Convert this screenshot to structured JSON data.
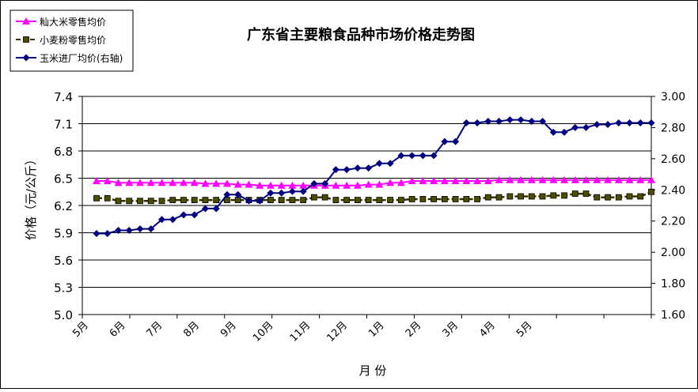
{
  "chart_data": {
    "type": "line",
    "title": "广东省主要粮食品种市场价格走势图",
    "xlabel": "月 份",
    "ylabel": "价格（元/公斤）",
    "ylim": [
      5.0,
      7.4
    ],
    "yticks": [
      "5.0",
      "5.3",
      "5.6",
      "5.9",
      "6.2",
      "6.5",
      "6.8",
      "7.1",
      "7.4"
    ],
    "y2lim": [
      1.6,
      3.0
    ],
    "y2ticks": [
      "1.60",
      "1.80",
      "2.00",
      "2.20",
      "2.40",
      "2.60",
      "2.80",
      "3.00"
    ],
    "x_tick_labels": [
      "5月",
      "6月",
      "7月",
      "8月",
      "9月",
      "10月",
      "11月",
      "12月",
      "1月",
      "2月",
      "3月",
      "4月",
      "5月"
    ],
    "grid": "horizontal",
    "legend_position": "top-left",
    "series": [
      {
        "name": "籼大米零售均价",
        "axis": "left",
        "color": "#ff00ff",
        "marker": "triangle",
        "values": [
          6.47,
          6.47,
          6.45,
          6.45,
          6.45,
          6.45,
          6.45,
          6.45,
          6.45,
          6.45,
          6.44,
          6.44,
          6.44,
          6.43,
          6.43,
          6.42,
          6.42,
          6.42,
          6.42,
          6.42,
          6.42,
          6.42,
          6.42,
          6.42,
          6.42,
          6.43,
          6.43,
          6.45,
          6.45,
          6.47,
          6.47,
          6.47,
          6.47,
          6.47,
          6.47,
          6.47,
          6.47,
          6.48,
          6.48,
          6.48,
          6.48,
          6.48,
          6.48,
          6.48,
          6.48,
          6.48,
          6.48,
          6.48,
          6.48,
          6.48,
          6.48,
          6.48
        ]
      },
      {
        "name": "小麦粉零售均价",
        "axis": "left",
        "color": "#333300",
        "marker": "square",
        "line_style": "dashed",
        "values": [
          6.28,
          6.28,
          6.25,
          6.25,
          6.25,
          6.25,
          6.25,
          6.26,
          6.26,
          6.26,
          6.26,
          6.26,
          6.26,
          6.26,
          6.26,
          6.26,
          6.26,
          6.26,
          6.26,
          6.26,
          6.29,
          6.29,
          6.26,
          6.26,
          6.26,
          6.26,
          6.26,
          6.26,
          6.26,
          6.27,
          6.27,
          6.27,
          6.27,
          6.27,
          6.27,
          6.27,
          6.29,
          6.29,
          6.3,
          6.3,
          6.3,
          6.3,
          6.31,
          6.31,
          6.33,
          6.33,
          6.29,
          6.29,
          6.29,
          6.3,
          6.3,
          6.35
        ]
      },
      {
        "name": "玉米进厂均价(右轴)",
        "axis": "right",
        "color": "#000080",
        "marker": "diamond",
        "values": [
          2.12,
          2.12,
          2.14,
          2.14,
          2.15,
          2.15,
          2.21,
          2.21,
          2.24,
          2.24,
          2.28,
          2.28,
          2.37,
          2.37,
          2.33,
          2.33,
          2.38,
          2.38,
          2.39,
          2.39,
          2.44,
          2.44,
          2.53,
          2.53,
          2.54,
          2.54,
          2.57,
          2.57,
          2.62,
          2.62,
          2.62,
          2.62,
          2.71,
          2.71,
          2.83,
          2.83,
          2.84,
          2.84,
          2.85,
          2.85,
          2.84,
          2.84,
          2.77,
          2.77,
          2.8,
          2.8,
          2.82,
          2.82,
          2.83,
          2.83,
          2.83,
          2.83
        ]
      }
    ]
  }
}
